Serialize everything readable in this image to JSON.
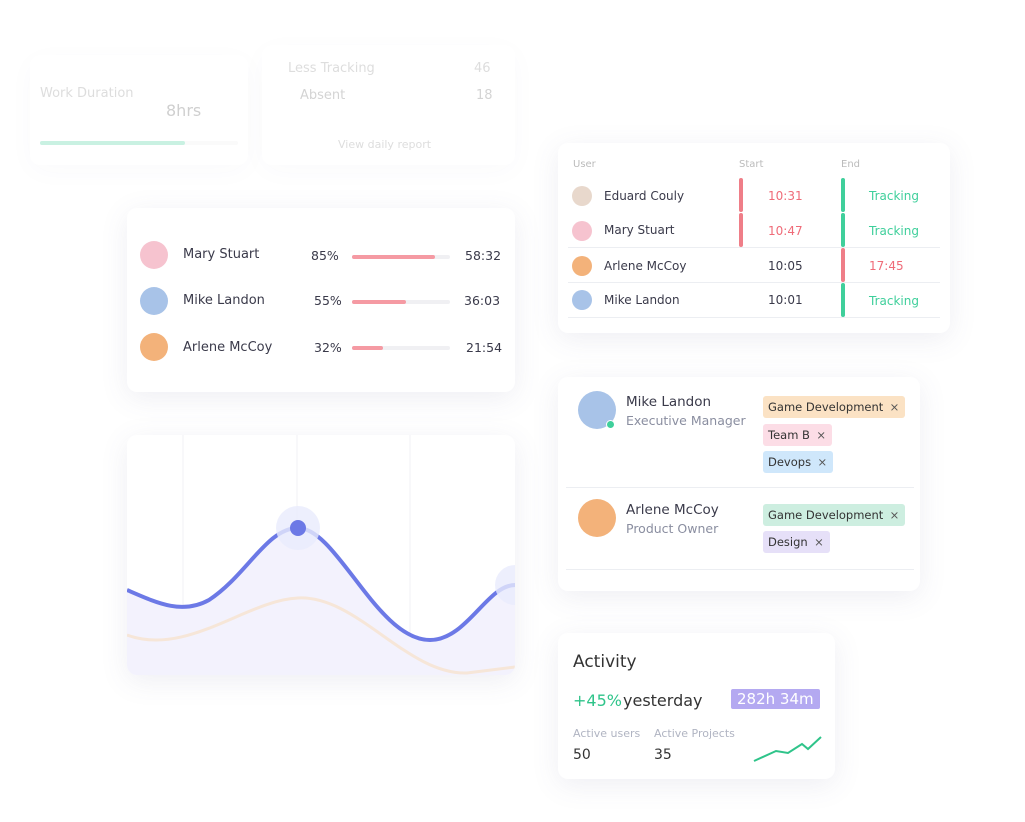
{
  "work_card": {
    "label": "Work Duration",
    "value": "8hrs",
    "stats": [
      {
        "label": "Less Tracking",
        "value": "46"
      },
      {
        "label": "Absent",
        "value": "18"
      }
    ],
    "link": "View daily report"
  },
  "progress_card": {
    "rows": [
      {
        "name": "Mary Stuart",
        "percent": {
          "value": 85,
          "label": "85%"
        },
        "time": "58:32"
      },
      {
        "name": "Mike Landon",
        "percent": {
          "value": 55,
          "label": "55%"
        },
        "time": "36:03"
      },
      {
        "name": "Arlene McCoy",
        "percent": {
          "value": 32,
          "label": "32%"
        },
        "time": "21:54"
      }
    ]
  },
  "tracking_table": {
    "headers": [
      "User",
      "Start",
      "End"
    ],
    "rows": [
      {
        "user": "Eduard Couly",
        "start": "10:31",
        "end": "Tracking"
      },
      {
        "user": "Mary Stuart",
        "start": "10:47",
        "end": "Tracking"
      },
      {
        "user": "Arlene McCoy",
        "start": "10:05",
        "end": "17:45"
      },
      {
        "user": "Mike Landon",
        "start": "10:01",
        "end": "Tracking"
      }
    ]
  },
  "team_card": {
    "members": [
      {
        "name": "Mike Landon",
        "role": "Executive Manager",
        "tags": [
          "Game Development",
          "Team B",
          "Devops"
        ]
      },
      {
        "name": "Arlene McCoy",
        "role": "Product Owner",
        "tags": [
          "Game Development",
          "Design"
        ]
      }
    ]
  },
  "activity": {
    "title": "Activity",
    "change": "+45%",
    "period": "yesterday",
    "total": "282h 34m",
    "stats": [
      {
        "label": "Active users",
        "value": "50"
      },
      {
        "label": "Active Projects",
        "value": "35"
      }
    ]
  }
}
